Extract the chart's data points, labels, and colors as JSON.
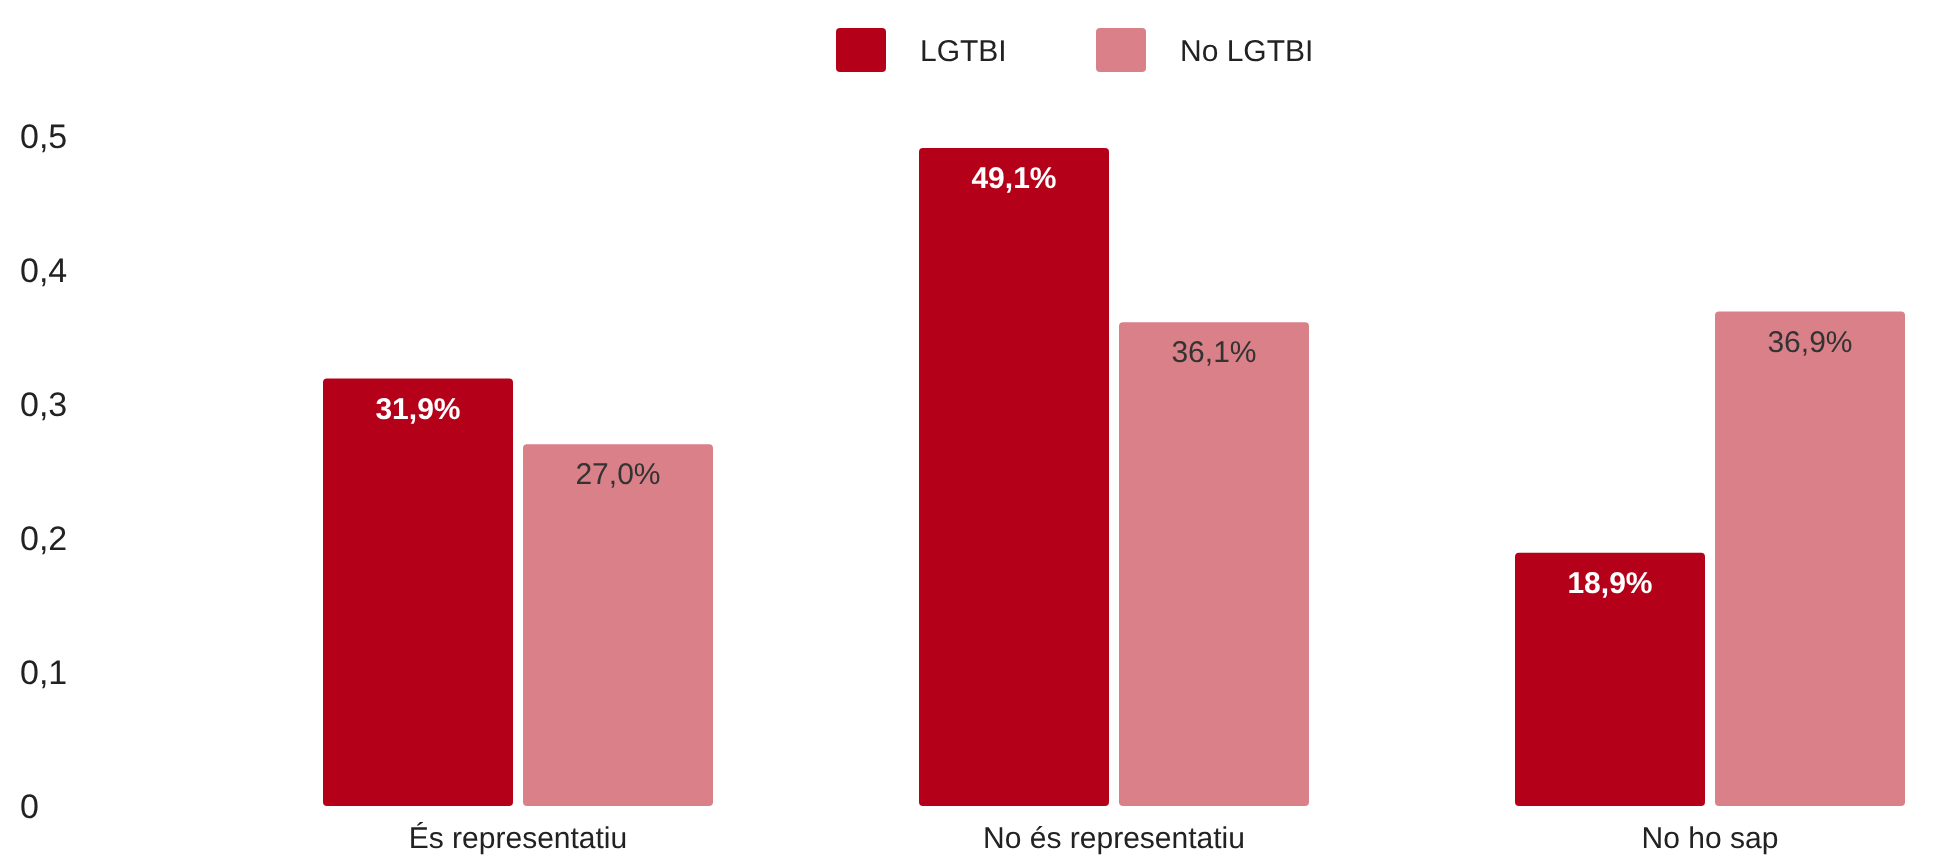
{
  "chart_data": {
    "type": "bar",
    "categories": [
      "És representatiu",
      "No és representatiu",
      "No ho sap"
    ],
    "series": [
      {
        "name": "LGTBI",
        "color": "#b5001a",
        "values": [
          0.319,
          0.491,
          0.189
        ],
        "value_labels": [
          "31,9%",
          "49,1%",
          "18,9%"
        ]
      },
      {
        "name": "No LGTBI",
        "color": "#d98088",
        "values": [
          0.27,
          0.361,
          0.369
        ],
        "value_labels": [
          "27,0%",
          "36,1%",
          "36,9%"
        ]
      }
    ],
    "ylim": [
      0,
      0.5
    ],
    "yticks": [
      {
        "value": 0,
        "label": "0"
      },
      {
        "value": 0.1,
        "label": "0,1"
      },
      {
        "value": 0.2,
        "label": "0,2"
      },
      {
        "value": 0.3,
        "label": "0,3"
      },
      {
        "value": 0.4,
        "label": "0,4"
      },
      {
        "value": 0.5,
        "label": "0,5"
      }
    ],
    "grid": false,
    "legend": "top"
  }
}
